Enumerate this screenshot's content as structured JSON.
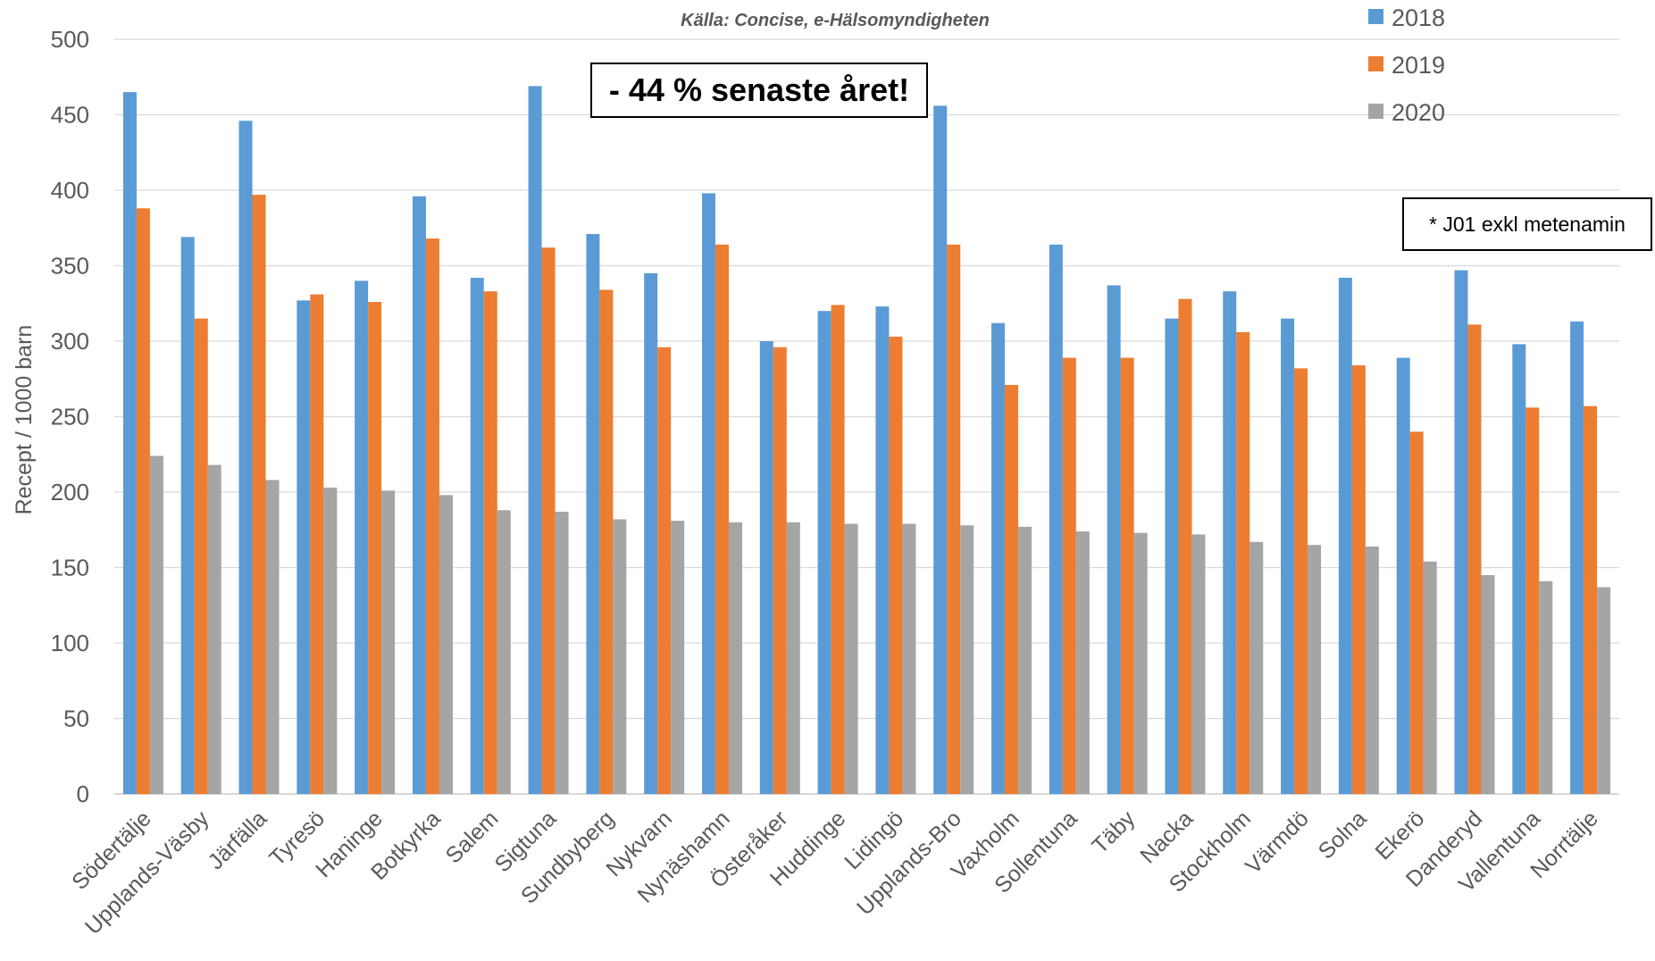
{
  "chart_data": {
    "type": "bar",
    "source": "Källa: Concise, e-Hälsomyndigheten",
    "ylabel": "Recept / 1000 barn",
    "xlabel": "",
    "ylim": [
      0,
      500
    ],
    "yticks": [
      0,
      50,
      100,
      150,
      200,
      250,
      300,
      350,
      400,
      450,
      500
    ],
    "grid": true,
    "legend_position": "top-right",
    "categories": [
      "Södertälje",
      "Upplands-Väsby",
      "Järfälla",
      "Tyresö",
      "Haninge",
      "Botkyrka",
      "Salem",
      "Sigtuna",
      "Sundbyberg",
      "Nykvarn",
      "Nynäshamn",
      "Österåker",
      "Huddinge",
      "Lidingö",
      "Upplands-Bro",
      "Vaxholm",
      "Sollentuna",
      "Täby",
      "Nacka",
      "Stockholm",
      "Värmdö",
      "Solna",
      "Ekerö",
      "Danderyd",
      "Vallentuna",
      "Norrtälje"
    ],
    "series": [
      {
        "name": "2018",
        "color": "#5b9bd5",
        "values": [
          465,
          369,
          446,
          327,
          340,
          396,
          342,
          469,
          371,
          345,
          398,
          300,
          320,
          323,
          456,
          312,
          364,
          337,
          315,
          333,
          315,
          342,
          289,
          347,
          298,
          313
        ]
      },
      {
        "name": "2019",
        "color": "#ed7d31",
        "values": [
          388,
          315,
          397,
          331,
          326,
          368,
          333,
          362,
          334,
          296,
          364,
          296,
          324,
          303,
          364,
          271,
          289,
          289,
          328,
          306,
          282,
          284,
          240,
          311,
          256,
          257
        ]
      },
      {
        "name": "2020",
        "color": "#a5a5a5",
        "values": [
          224,
          218,
          208,
          203,
          201,
          198,
          188,
          187,
          182,
          181,
          180,
          180,
          179,
          179,
          178,
          177,
          174,
          173,
          172,
          167,
          165,
          164,
          154,
          145,
          141,
          137
        ]
      }
    ],
    "annotations": {
      "callout": "- 44 % senaste året!",
      "footnote": "* J01 exkl metenamin"
    }
  }
}
